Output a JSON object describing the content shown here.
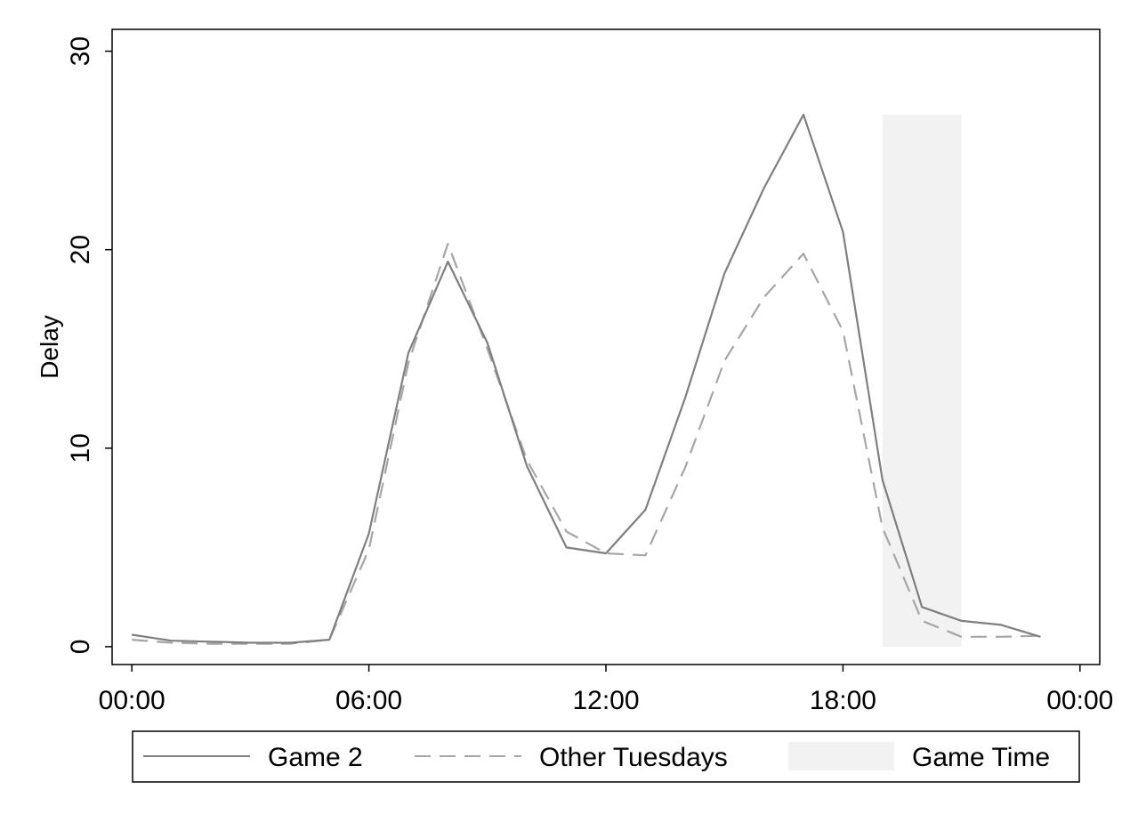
{
  "chart_data": {
    "type": "line",
    "ylabel": "Delay",
    "xlabel": "",
    "x_unit": "hours",
    "xlim": [
      -0.5,
      24.5
    ],
    "ylim": [
      -0.9,
      31.1
    ],
    "x_ticks": [
      {
        "value": 0,
        "label": "00:00"
      },
      {
        "value": 6,
        "label": "06:00"
      },
      {
        "value": 12,
        "label": "12:00"
      },
      {
        "value": 18,
        "label": "18:00"
      },
      {
        "value": 24,
        "label": "00:00"
      }
    ],
    "y_ticks": [
      {
        "value": 0,
        "label": "0"
      },
      {
        "value": 10,
        "label": "10"
      },
      {
        "value": 20,
        "label": "20"
      },
      {
        "value": 30,
        "label": "30"
      }
    ],
    "grid": false,
    "legend_position": "bottom",
    "x": [
      0,
      1,
      2,
      3,
      4,
      5,
      6,
      7,
      8,
      9,
      10,
      11,
      12,
      13,
      14,
      15,
      16,
      17,
      18,
      19,
      20,
      21,
      22,
      23
    ],
    "series": [
      {
        "name": "Game 2",
        "style": "solid",
        "color": "#7f7f7f",
        "values": [
          0.6,
          0.3,
          0.25,
          0.2,
          0.2,
          0.35,
          5.7,
          14.8,
          19.4,
          15.3,
          9.1,
          5.0,
          4.7,
          6.9,
          12.5,
          18.8,
          23.1,
          26.8,
          20.9,
          8.4,
          2.0,
          1.3,
          1.1,
          0.5
        ]
      },
      {
        "name": "Other Tuesdays",
        "style": "dashed",
        "color": "#a6a6a6",
        "values": [
          0.35,
          0.2,
          0.15,
          0.15,
          0.15,
          0.35,
          4.9,
          14.3,
          20.3,
          15.0,
          9.4,
          5.8,
          4.7,
          4.6,
          9.0,
          14.4,
          17.6,
          19.8,
          15.9,
          6.0,
          1.3,
          0.5,
          0.5,
          0.55
        ]
      }
    ],
    "shaded_region": {
      "name": "Game Time",
      "x_range": [
        19,
        21
      ],
      "y_range": [
        0,
        26.8
      ],
      "color": "#f2f2f2"
    }
  }
}
